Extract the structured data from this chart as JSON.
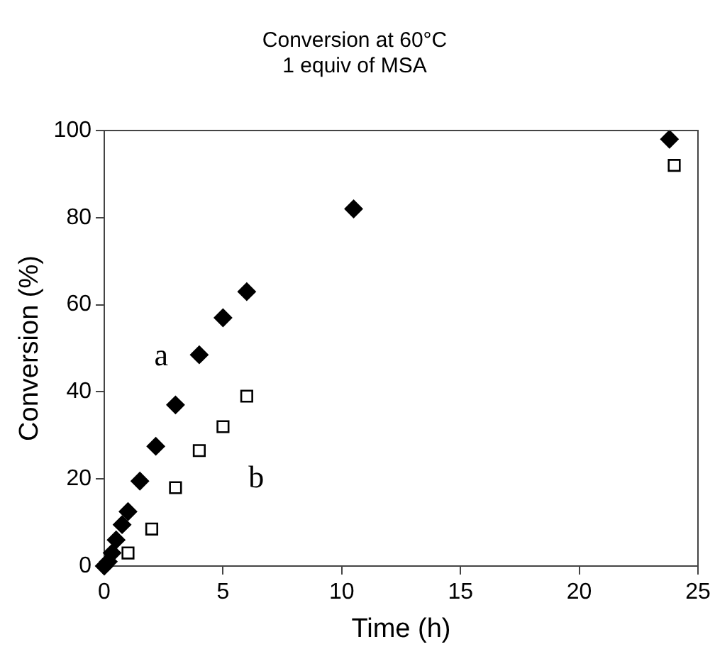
{
  "chart_data": {
    "type": "scatter",
    "title": [
      "Conversion at 60°C",
      "1 equiv of MSA"
    ],
    "xlabel": "Time (h)",
    "ylabel": "Conversion (%)",
    "xlim": [
      0,
      25
    ],
    "xticks": [
      0,
      5,
      10,
      15,
      20,
      25
    ],
    "ylim": [
      0,
      100
    ],
    "yticks": [
      0,
      20,
      40,
      60,
      80,
      100
    ],
    "grid": false,
    "legend": false,
    "series": [
      {
        "color": "#000000",
        "marker": "diamond",
        "x": [
          0,
          0.17,
          0.33,
          0.5,
          0.75,
          1,
          1.5,
          2.17,
          3,
          4,
          5,
          6,
          10.5,
          23.8
        ],
        "values": [
          0,
          1,
          3,
          6,
          9.5,
          12.5,
          19.5,
          27.5,
          37,
          48.5,
          57,
          63,
          82,
          98
        ]
      },
      {
        "color": "#000000",
        "marker": "square",
        "x": [
          1,
          2,
          3,
          4,
          5,
          6,
          24
        ],
        "values": [
          3,
          8.5,
          18,
          26.5,
          32,
          39,
          92
        ]
      }
    ],
    "annotations": [
      "a",
      "b"
    ]
  }
}
